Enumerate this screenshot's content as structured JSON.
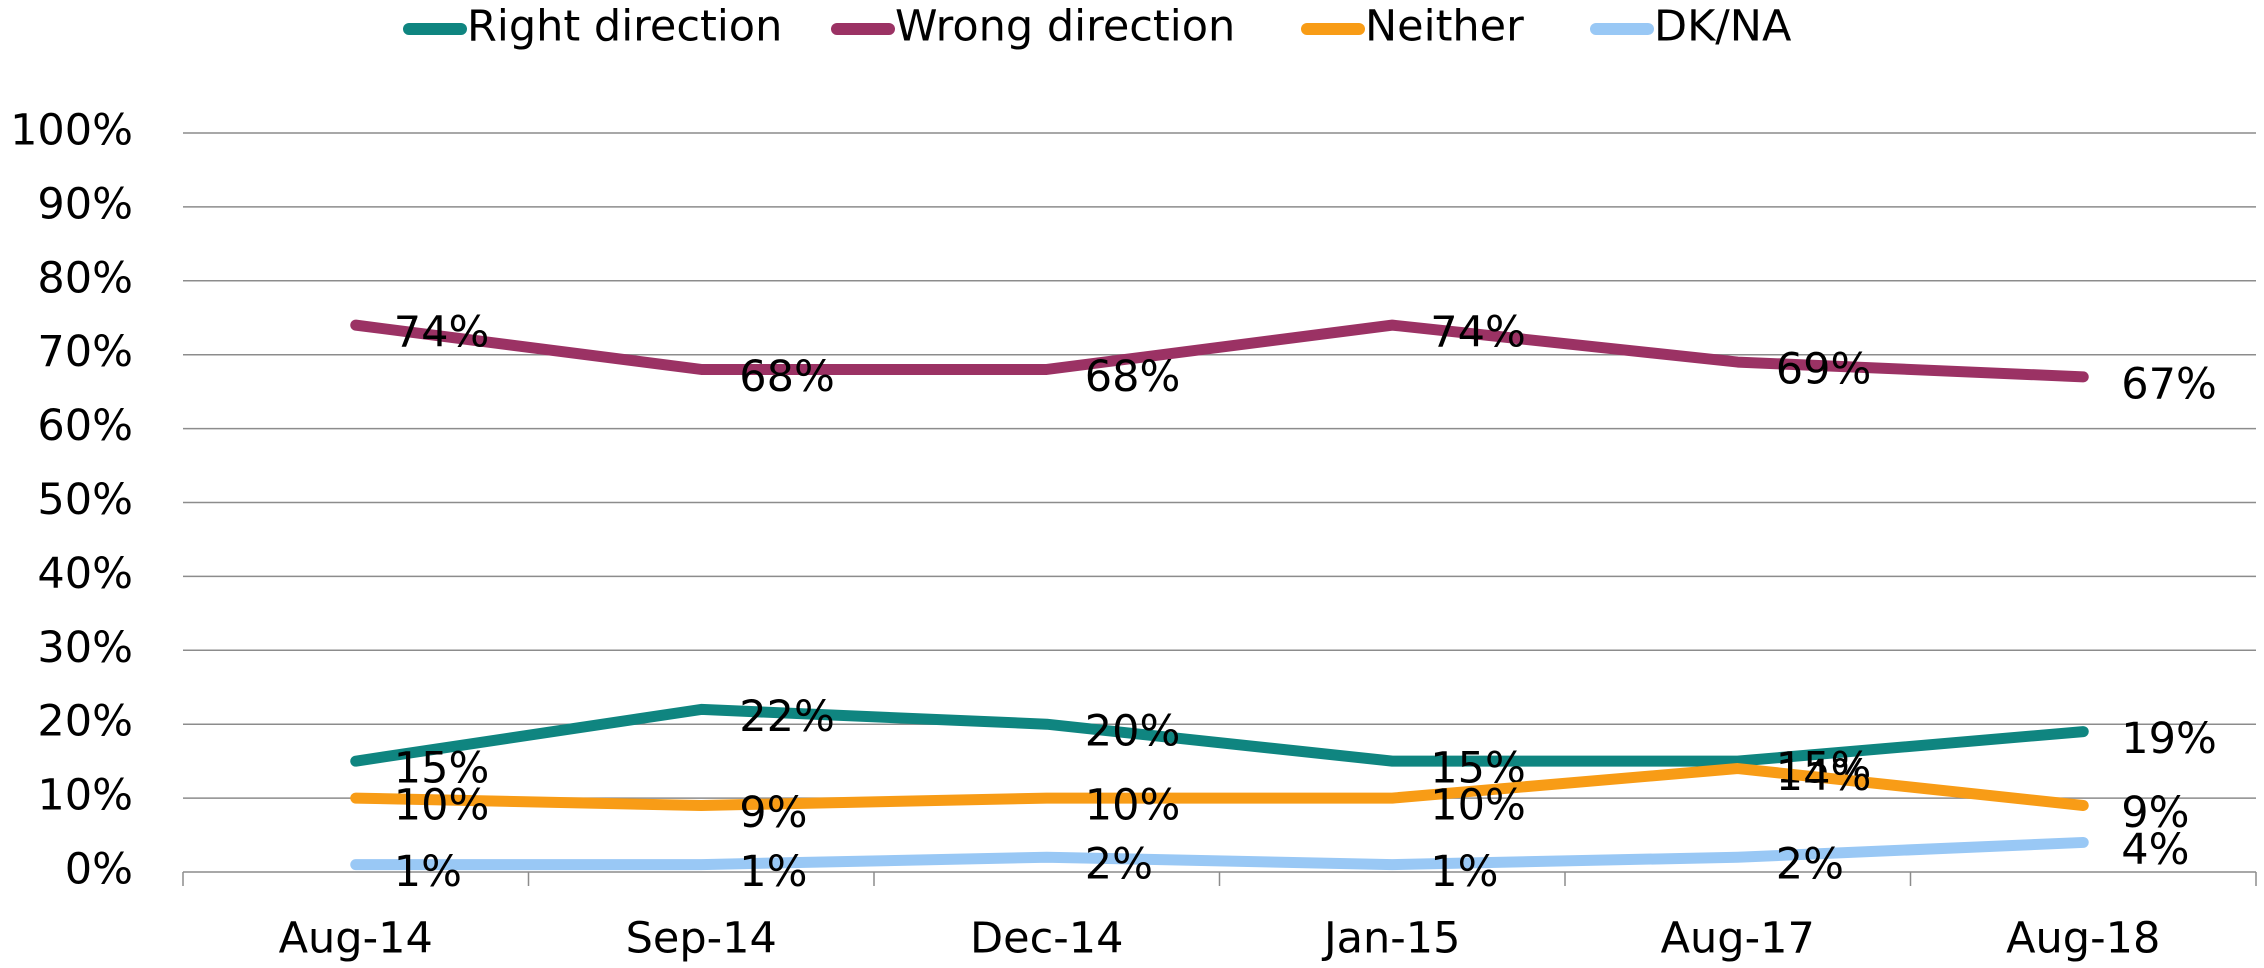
{
  "chart_data": {
    "type": "line",
    "categories": [
      "Aug-14",
      "Sep-14",
      "Dec-14",
      "Jan-15",
      "Aug-17",
      "Aug-18"
    ],
    "series": [
      {
        "name": "Right direction",
        "color": "#0f8580",
        "values": [
          15,
          22,
          20,
          15,
          15,
          19
        ],
        "value_labels": [
          "15%",
          "22%",
          "20%",
          "15%",
          "15%",
          "19%"
        ]
      },
      {
        "name": "Wrong direction",
        "color": "#9b3264",
        "values": [
          74,
          68,
          68,
          74,
          69,
          67
        ],
        "value_labels": [
          "74%",
          "68%",
          "68%",
          "74%",
          "69%",
          "67%"
        ]
      },
      {
        "name": "Neither",
        "color": "#f89c16",
        "values": [
          10,
          9,
          10,
          10,
          14,
          9
        ],
        "value_labels": [
          "10%",
          "9%",
          "10%",
          "10%",
          "14%",
          "9%"
        ]
      },
      {
        "name": "DK/NA",
        "color": "#99c8f5",
        "values": [
          1,
          1,
          2,
          1,
          2,
          4
        ],
        "value_labels": [
          "1%",
          "1%",
          "2%",
          "1%",
          "2%",
          "4%"
        ]
      }
    ],
    "ylim": [
      0,
      100
    ],
    "yticks": [
      {
        "value": 0,
        "label": "0%"
      },
      {
        "value": 10,
        "label": "10%"
      },
      {
        "value": 20,
        "label": "20%"
      },
      {
        "value": 30,
        "label": "30%"
      },
      {
        "value": 40,
        "label": "40%"
      },
      {
        "value": 50,
        "label": "50%"
      },
      {
        "value": 60,
        "label": "60%"
      },
      {
        "value": 70,
        "label": "70%"
      },
      {
        "value": 80,
        "label": "80%"
      },
      {
        "value": 90,
        "label": "90%"
      },
      {
        "value": 100,
        "label": "100%"
      }
    ],
    "grid": true,
    "legend": "top"
  }
}
